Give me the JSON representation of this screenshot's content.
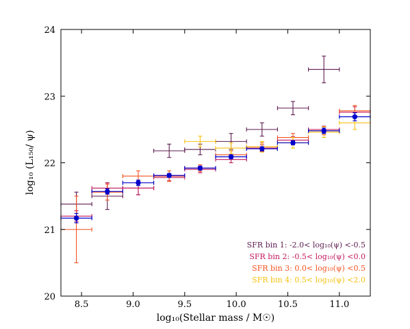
{
  "chart_data": {
    "type": "scatter",
    "xlabel": "log₁₀(Stellar mass / M☉)",
    "ylabel": "log₁₀ (L₁₅₀/ ψ)",
    "xlim": [
      8.3,
      11.3
    ],
    "ylim": [
      20,
      24
    ],
    "xticks": [
      "8.5",
      "9.0",
      "9.5",
      "10.0",
      "10.5",
      "11.0"
    ],
    "yticks": [
      "20",
      "21",
      "22",
      "23",
      "24"
    ],
    "grid": false,
    "legend_position": "bottom-right",
    "series": [
      {
        "name": "SFR bin 1: -2.0< log₁₀(ψ) <-0.5",
        "color": "#5a1a4e",
        "points": [
          {
            "x": 8.45,
            "y": 21.38,
            "xerr": 0.15,
            "yerr": 0.18
          },
          {
            "x": 8.75,
            "y": 21.5,
            "xerr": 0.15,
            "yerr": 0.2
          },
          {
            "x": 9.05,
            "y": 21.62,
            "xerr": 0.15,
            "yerr": 0.1
          },
          {
            "x": 9.35,
            "y": 22.18,
            "xerr": 0.15,
            "yerr": 0.1
          },
          {
            "x": 9.65,
            "y": 22.2,
            "xerr": 0.15,
            "yerr": 0.08
          },
          {
            "x": 9.95,
            "y": 22.32,
            "xerr": 0.15,
            "yerr": 0.12
          },
          {
            "x": 10.25,
            "y": 22.5,
            "xerr": 0.15,
            "yerr": 0.1
          },
          {
            "x": 10.55,
            "y": 22.82,
            "xerr": 0.15,
            "yerr": 0.1
          },
          {
            "x": 10.85,
            "y": 23.4,
            "xerr": 0.15,
            "yerr": 0.2
          }
        ]
      },
      {
        "name": "SFR bin 2: -0.5< log₁₀(ψ) <0.0",
        "color": "#c2185b",
        "points": [
          {
            "x": 8.45,
            "y": 21.2,
            "xerr": 0.15,
            "yerr": 0.08
          },
          {
            "x": 8.75,
            "y": 21.62,
            "xerr": 0.15,
            "yerr": 0.08
          },
          {
            "x": 9.05,
            "y": 21.62,
            "xerr": 0.15,
            "yerr": 0.1
          },
          {
            "x": 9.35,
            "y": 21.78,
            "xerr": 0.15,
            "yerr": 0.05
          },
          {
            "x": 9.65,
            "y": 21.9,
            "xerr": 0.15,
            "yerr": 0.05
          },
          {
            "x": 9.95,
            "y": 22.05,
            "xerr": 0.15,
            "yerr": 0.05
          },
          {
            "x": 10.25,
            "y": 22.22,
            "xerr": 0.15,
            "yerr": 0.05
          },
          {
            "x": 10.55,
            "y": 22.34,
            "xerr": 0.15,
            "yerr": 0.05
          },
          {
            "x": 10.85,
            "y": 22.5,
            "xerr": 0.15,
            "yerr": 0.05
          },
          {
            "x": 11.15,
            "y": 22.76,
            "xerr": 0.15,
            "yerr": 0.08
          }
        ]
      },
      {
        "name": "SFR bin 3: 0.0< log₁₀(ψ) <0.5",
        "color": "#f4511e",
        "points": [
          {
            "x": 8.45,
            "y": 21.0,
            "xerr": 0.15,
            "yerr": 0.5
          },
          {
            "x": 8.75,
            "y": 21.56,
            "xerr": 0.15,
            "yerr": 0.12
          },
          {
            "x": 9.05,
            "y": 21.8,
            "xerr": 0.15,
            "yerr": 0.08
          },
          {
            "x": 9.35,
            "y": 21.8,
            "xerr": 0.15,
            "yerr": 0.08
          },
          {
            "x": 9.65,
            "y": 21.92,
            "xerr": 0.15,
            "yerr": 0.05
          },
          {
            "x": 9.95,
            "y": 22.12,
            "xerr": 0.15,
            "yerr": 0.06
          },
          {
            "x": 10.25,
            "y": 22.24,
            "xerr": 0.15,
            "yerr": 0.06
          },
          {
            "x": 10.55,
            "y": 22.38,
            "xerr": 0.15,
            "yerr": 0.06
          },
          {
            "x": 10.85,
            "y": 22.48,
            "xerr": 0.15,
            "yerr": 0.06
          },
          {
            "x": 11.15,
            "y": 22.78,
            "xerr": 0.15,
            "yerr": 0.08
          }
        ]
      },
      {
        "name": "SFR bin 4: 0.5< log₁₀(ψ) <2.0",
        "color": "#f6c10e",
        "points": [
          {
            "x": 9.65,
            "y": 22.32,
            "xerr": 0.15,
            "yerr": 0.08
          },
          {
            "x": 9.95,
            "y": 22.22,
            "xerr": 0.15,
            "yerr": 0.08
          },
          {
            "x": 10.25,
            "y": 22.24,
            "xerr": 0.15,
            "yerr": 0.08
          },
          {
            "x": 10.55,
            "y": 22.3,
            "xerr": 0.15,
            "yerr": 0.08
          },
          {
            "x": 10.85,
            "y": 22.46,
            "xerr": 0.15,
            "yerr": 0.08
          },
          {
            "x": 11.15,
            "y": 22.6,
            "xerr": 0.15,
            "yerr": 0.1
          }
        ]
      },
      {
        "name": "",
        "color": "#0000cc",
        "marker": "circle",
        "points": [
          {
            "x": 8.45,
            "y": 21.17,
            "xerr": 0.15,
            "yerr": 0.07
          },
          {
            "x": 8.75,
            "y": 21.57,
            "xerr": 0.15,
            "yerr": 0.04
          },
          {
            "x": 9.05,
            "y": 21.7,
            "xerr": 0.15,
            "yerr": 0.04
          },
          {
            "x": 9.35,
            "y": 21.81,
            "xerr": 0.15,
            "yerr": 0.03
          },
          {
            "x": 9.65,
            "y": 21.92,
            "xerr": 0.15,
            "yerr": 0.03
          },
          {
            "x": 9.95,
            "y": 22.09,
            "xerr": 0.15,
            "yerr": 0.03
          },
          {
            "x": 10.25,
            "y": 22.21,
            "xerr": 0.15,
            "yerr": 0.03
          },
          {
            "x": 10.55,
            "y": 22.3,
            "xerr": 0.15,
            "yerr": 0.03
          },
          {
            "x": 10.85,
            "y": 22.48,
            "xerr": 0.15,
            "yerr": 0.04
          },
          {
            "x": 11.15,
            "y": 22.69,
            "xerr": 0.15,
            "yerr": 0.06
          }
        ]
      }
    ]
  }
}
